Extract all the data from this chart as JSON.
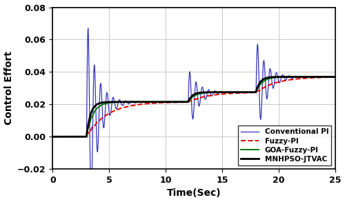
{
  "title": "",
  "xlabel": "Time(Sec)",
  "ylabel": "Control Effort",
  "xlim": [
    0,
    25
  ],
  "ylim": [
    -0.02,
    0.08
  ],
  "yticks": [
    -0.02,
    0.0,
    0.02,
    0.04,
    0.06,
    0.08
  ],
  "xticks": [
    0,
    5,
    10,
    15,
    20,
    25
  ],
  "legend": [
    "Conventional PI",
    "Fuzzy-PI",
    "GOA-Fuzzy-PI",
    "MNHPSO-JTVAC"
  ],
  "colors": {
    "conv_pi": "#3333bb",
    "fuzzy_pi": "#dd0000",
    "goa_fuzzy": "#007700",
    "mnhpso": "#000000"
  },
  "step1_time": 3.0,
  "step2_time": 12.0,
  "step3_time": 18.0,
  "steady1": 0.0215,
  "steady2": 0.0275,
  "steady3": 0.037,
  "background": "#ffffff",
  "grid_color": "#c8c8c8"
}
